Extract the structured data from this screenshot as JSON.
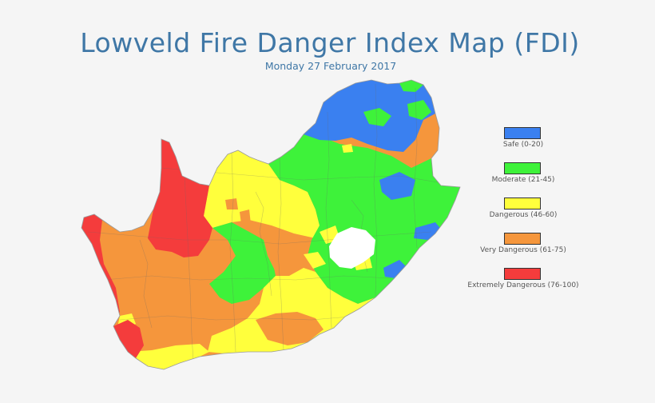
{
  "header": {
    "title": "Lowveld Fire Danger Index Map (FDI)",
    "date": "Monday 27 February 2017"
  },
  "legend": {
    "items": [
      {
        "label": "Safe (0-20)",
        "color": "#3a80f0"
      },
      {
        "label": "Moderate (21-45)",
        "color": "#3ef23a"
      },
      {
        "label": "Dangerous (46-60)",
        "color": "#ffff3c"
      },
      {
        "label": "Very Dangerous (61-75)",
        "color": "#f5963c"
      },
      {
        "label": "Extremely Dangerous (76-100)",
        "color": "#f43c3c"
      }
    ]
  }
}
